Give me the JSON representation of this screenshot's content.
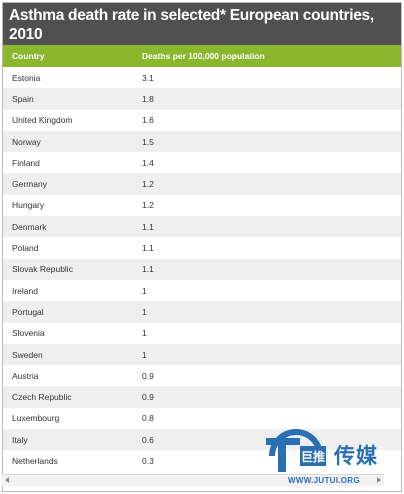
{
  "chart_data": {
    "type": "table",
    "title": "Asthma death rate in selected* European countries, 2010",
    "columns": [
      "Country",
      "Deaths per 100,000 population"
    ],
    "rows": [
      {
        "country": "Estonia",
        "value": "3.1"
      },
      {
        "country": "Spain",
        "value": "1.8"
      },
      {
        "country": "United Kingdom",
        "value": "1.6"
      },
      {
        "country": "Norway",
        "value": "1.5"
      },
      {
        "country": "Finland",
        "value": "1.4"
      },
      {
        "country": "Germany",
        "value": "1.2"
      },
      {
        "country": "Hungary",
        "value": "1.2"
      },
      {
        "country": "Denmark",
        "value": "1.1"
      },
      {
        "country": "Poland",
        "value": "1.1"
      },
      {
        "country": "Slovak Republic",
        "value": "1.1"
      },
      {
        "country": "Ireland",
        "value": "1"
      },
      {
        "country": "Portugal",
        "value": "1"
      },
      {
        "country": "Slovenia",
        "value": "1"
      },
      {
        "country": "Sweden",
        "value": "1"
      },
      {
        "country": "Austria",
        "value": "0.9"
      },
      {
        "country": "Czech Republic",
        "value": "0.9"
      },
      {
        "country": "Luxembourg",
        "value": "0.8"
      },
      {
        "country": "Italy",
        "value": "0.6"
      },
      {
        "country": "Netherlands",
        "value": "0.3"
      }
    ]
  },
  "watermark": {
    "brand": "传媒",
    "logo_text": "巨推",
    "url": "WWW.JUTUI.ORG"
  },
  "colors": {
    "title_bg": "#505050",
    "header_bg": "#8ab82d",
    "row_alt": "#efefef",
    "watermark": "#2a6fb4"
  }
}
